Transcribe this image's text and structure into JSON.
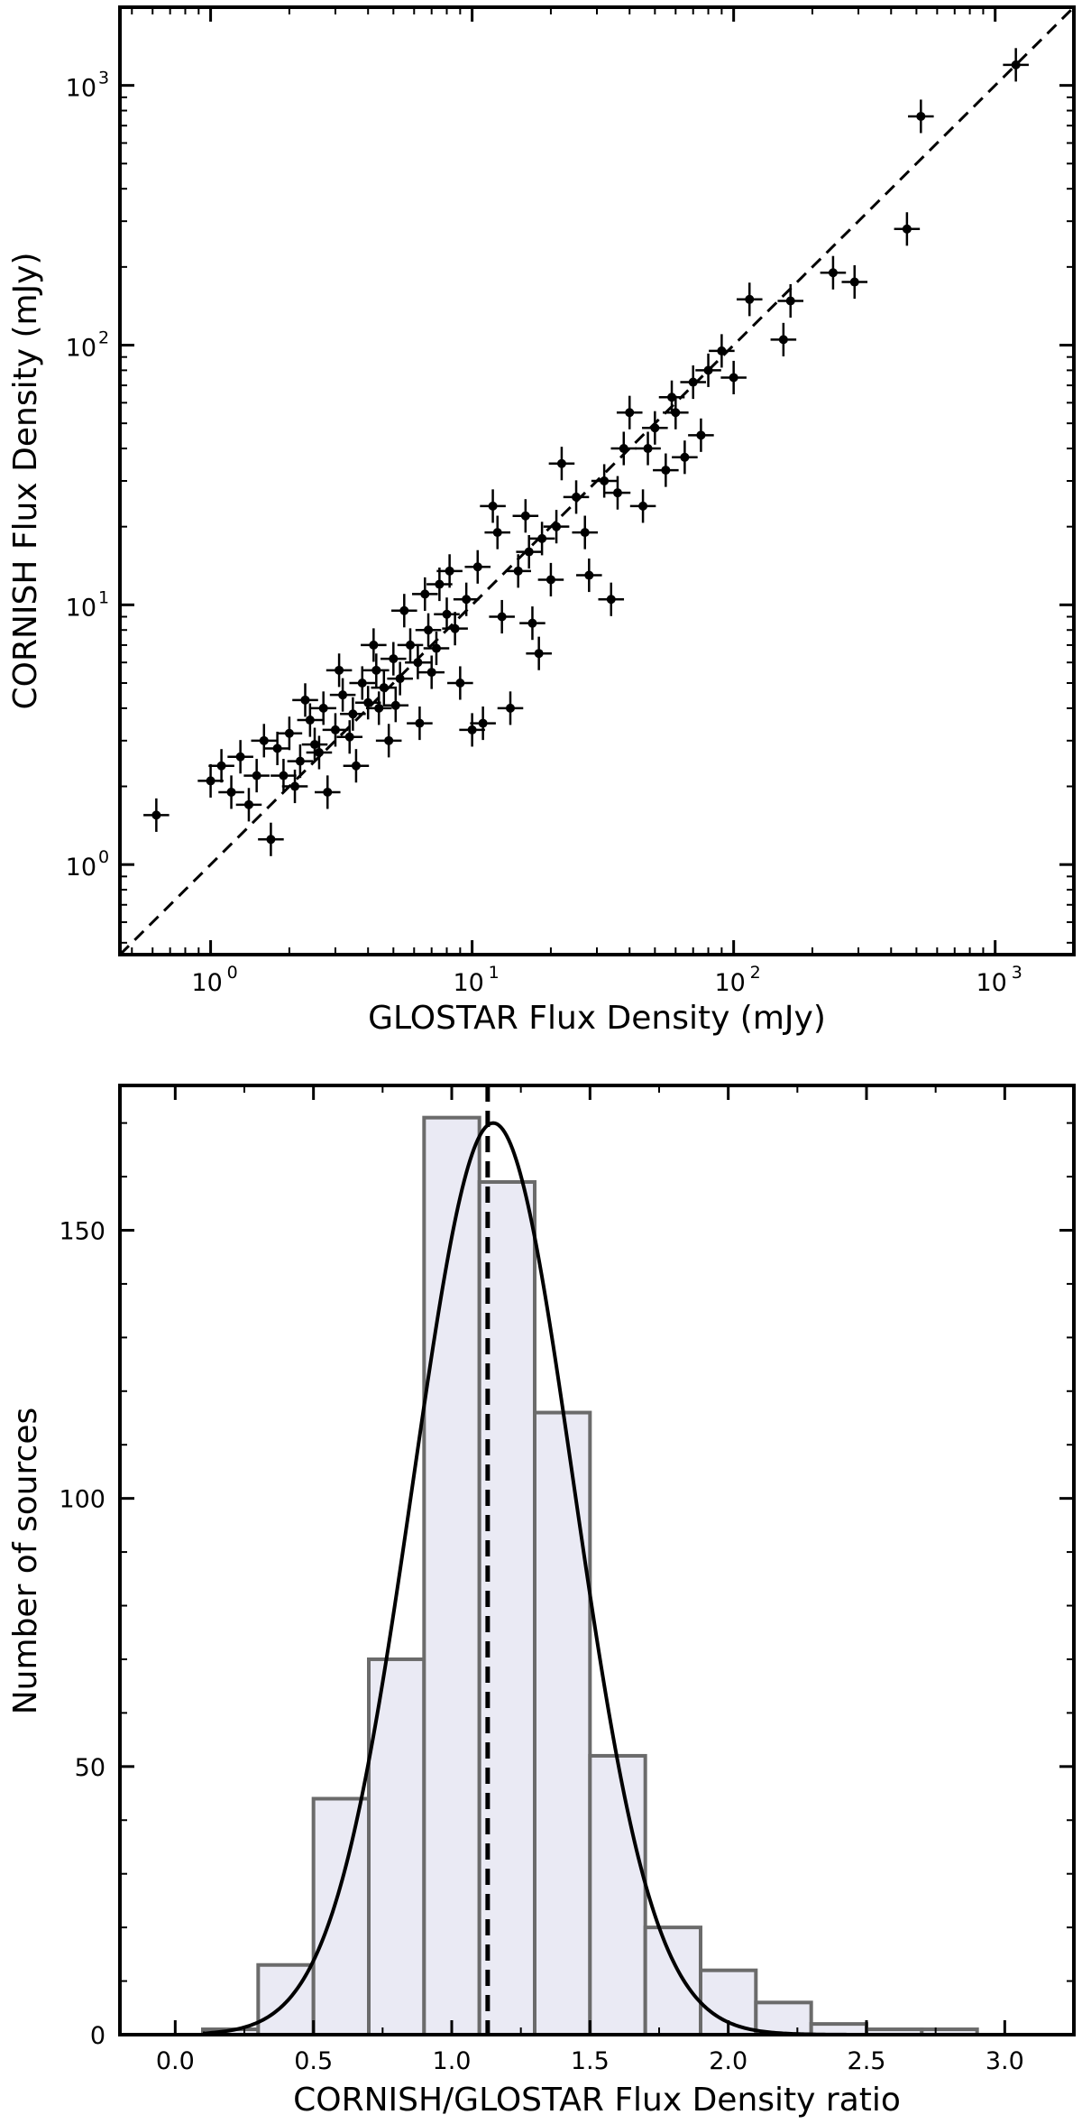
{
  "chart_data": [
    {
      "type": "scatter",
      "title": "",
      "xlabel": "GLOSTAR Flux Density (mJy)",
      "ylabel": "CORNISH Flux Density (mJy)",
      "x_scale": "log",
      "y_scale": "log",
      "xlim": [
        0.45,
        2000
      ],
      "ylim": [
        0.45,
        2000
      ],
      "x_ticks": [
        {
          "base": "10",
          "exp": "0",
          "value": 1
        },
        {
          "base": "10",
          "exp": "1",
          "value": 10
        },
        {
          "base": "10",
          "exp": "2",
          "value": 100
        },
        {
          "base": "10",
          "exp": "3",
          "value": 1000
        }
      ],
      "y_ticks": [
        {
          "base": "10",
          "exp": "0",
          "value": 1
        },
        {
          "base": "10",
          "exp": "1",
          "value": 10
        },
        {
          "base": "10",
          "exp": "2",
          "value": 100
        },
        {
          "base": "10",
          "exp": "3",
          "value": 1000
        }
      ],
      "reference_line": "y = x (dashed)",
      "error_bars": true,
      "series": [
        {
          "points": [
            [
              0.62,
              1.55
            ],
            [
              1.0,
              2.1
            ],
            [
              1.1,
              2.4
            ],
            [
              1.2,
              1.9
            ],
            [
              1.3,
              2.6
            ],
            [
              1.5,
              2.2
            ],
            [
              1.6,
              3.0
            ],
            [
              1.7,
              1.25
            ],
            [
              1.8,
              2.8
            ],
            [
              2.0,
              3.2
            ],
            [
              2.2,
              2.5
            ],
            [
              2.4,
              3.6
            ],
            [
              2.5,
              2.9
            ],
            [
              2.7,
              4.0
            ],
            [
              3.0,
              3.3
            ],
            [
              3.2,
              4.5
            ],
            [
              3.5,
              3.8
            ],
            [
              3.8,
              5.0
            ],
            [
              4.0,
              4.2
            ],
            [
              4.3,
              5.6
            ],
            [
              4.6,
              4.8
            ],
            [
              5.0,
              6.2
            ],
            [
              5.3,
              5.2
            ],
            [
              5.8,
              7.0
            ],
            [
              6.2,
              6.0
            ],
            [
              6.8,
              8.0
            ],
            [
              7.3,
              6.8
            ],
            [
              8.0,
              9.2
            ],
            [
              8.6,
              8.1
            ],
            [
              9.5,
              10.5
            ],
            [
              10.0,
              3.3
            ],
            [
              11.0,
              3.5
            ],
            [
              12.0,
              24.0
            ],
            [
              14.0,
              4.0
            ],
            [
              15.0,
              13.5
            ],
            [
              16.5,
              16.0
            ],
            [
              18.0,
              6.5
            ],
            [
              18.5,
              18.0
            ],
            [
              21.0,
              20.0
            ],
            [
              25.0,
              26.0
            ],
            [
              28.0,
              13.0
            ],
            [
              32.0,
              30.0
            ],
            [
              34.0,
              10.5
            ],
            [
              38.0,
              40.0
            ],
            [
              45.0,
              24.0
            ],
            [
              50.0,
              48.0
            ],
            [
              60.0,
              55.0
            ],
            [
              65.0,
              37.0
            ],
            [
              70.0,
              72.0
            ],
            [
              80.0,
              80.0
            ],
            [
              90.0,
              95.0
            ],
            [
              115.0,
              150.0
            ],
            [
              155.0,
              105.0
            ],
            [
              165.0,
              148.0
            ],
            [
              240.0,
              190.0
            ],
            [
              290.0,
              175.0
            ],
            [
              460.0,
              280.0
            ],
            [
              520.0,
              760.0
            ],
            [
              1200.0,
              1200.0
            ],
            [
              4.8,
              3.0
            ],
            [
              6.3,
              3.5
            ],
            [
              9.0,
              5.0
            ],
            [
              2.8,
              1.9
            ],
            [
              1.4,
              1.7
            ],
            [
              3.6,
              2.4
            ],
            [
              7.5,
              12.0
            ],
            [
              10.5,
              14.0
            ],
            [
              5.5,
              9.5
            ],
            [
              22.0,
              35.0
            ],
            [
              40.0,
              55.0
            ],
            [
              55.0,
              33.0
            ],
            [
              100.0,
              75.0
            ],
            [
              13.0,
              9.0
            ],
            [
              17.0,
              8.5
            ],
            [
              2.3,
              4.3
            ],
            [
              4.2,
              7.0
            ],
            [
              6.6,
              11.0
            ],
            [
              3.1,
              5.6
            ],
            [
              8.2,
              13.5
            ],
            [
              12.5,
              19.0
            ],
            [
              16.0,
              22.0
            ],
            [
              20.0,
              12.5
            ],
            [
              27.0,
              19.0
            ],
            [
              36.0,
              27.0
            ],
            [
              47.0,
              40.0
            ],
            [
              58.0,
              63.0
            ],
            [
              75.0,
              45.0
            ],
            [
              5.1,
              4.1
            ],
            [
              2.1,
              2.0
            ],
            [
              1.9,
              2.2
            ],
            [
              2.6,
              2.7
            ],
            [
              3.4,
              3.1
            ],
            [
              4.4,
              4.0
            ],
            [
              7.0,
              5.5
            ]
          ]
        }
      ]
    },
    {
      "type": "bar",
      "subtype": "histogram",
      "title": "",
      "xlabel": "CORNISH/GLOSTAR Flux Density ratio",
      "ylabel": "Number of sources",
      "xlim": [
        -0.2,
        3.25
      ],
      "ylim": [
        0,
        177
      ],
      "x_ticks": [
        "0.0",
        "0.5",
        "1.0",
        "1.5",
        "2.0",
        "2.5",
        "3.0"
      ],
      "y_ticks": [
        "0",
        "50",
        "100",
        "150"
      ],
      "bin_edges": [
        0.1,
        0.3,
        0.5,
        0.7,
        0.9,
        1.1,
        1.3,
        1.5,
        1.7,
        1.9,
        2.1,
        2.3,
        2.5,
        2.7,
        2.9
      ],
      "values": [
        1,
        13,
        44,
        70,
        171,
        159,
        116,
        52,
        20,
        12,
        6,
        2,
        1,
        1
      ],
      "gaussian_fit": {
        "mean": 1.15,
        "sigma": 0.29,
        "amplitude": 170
      },
      "median_line_x": 1.13
    }
  ]
}
